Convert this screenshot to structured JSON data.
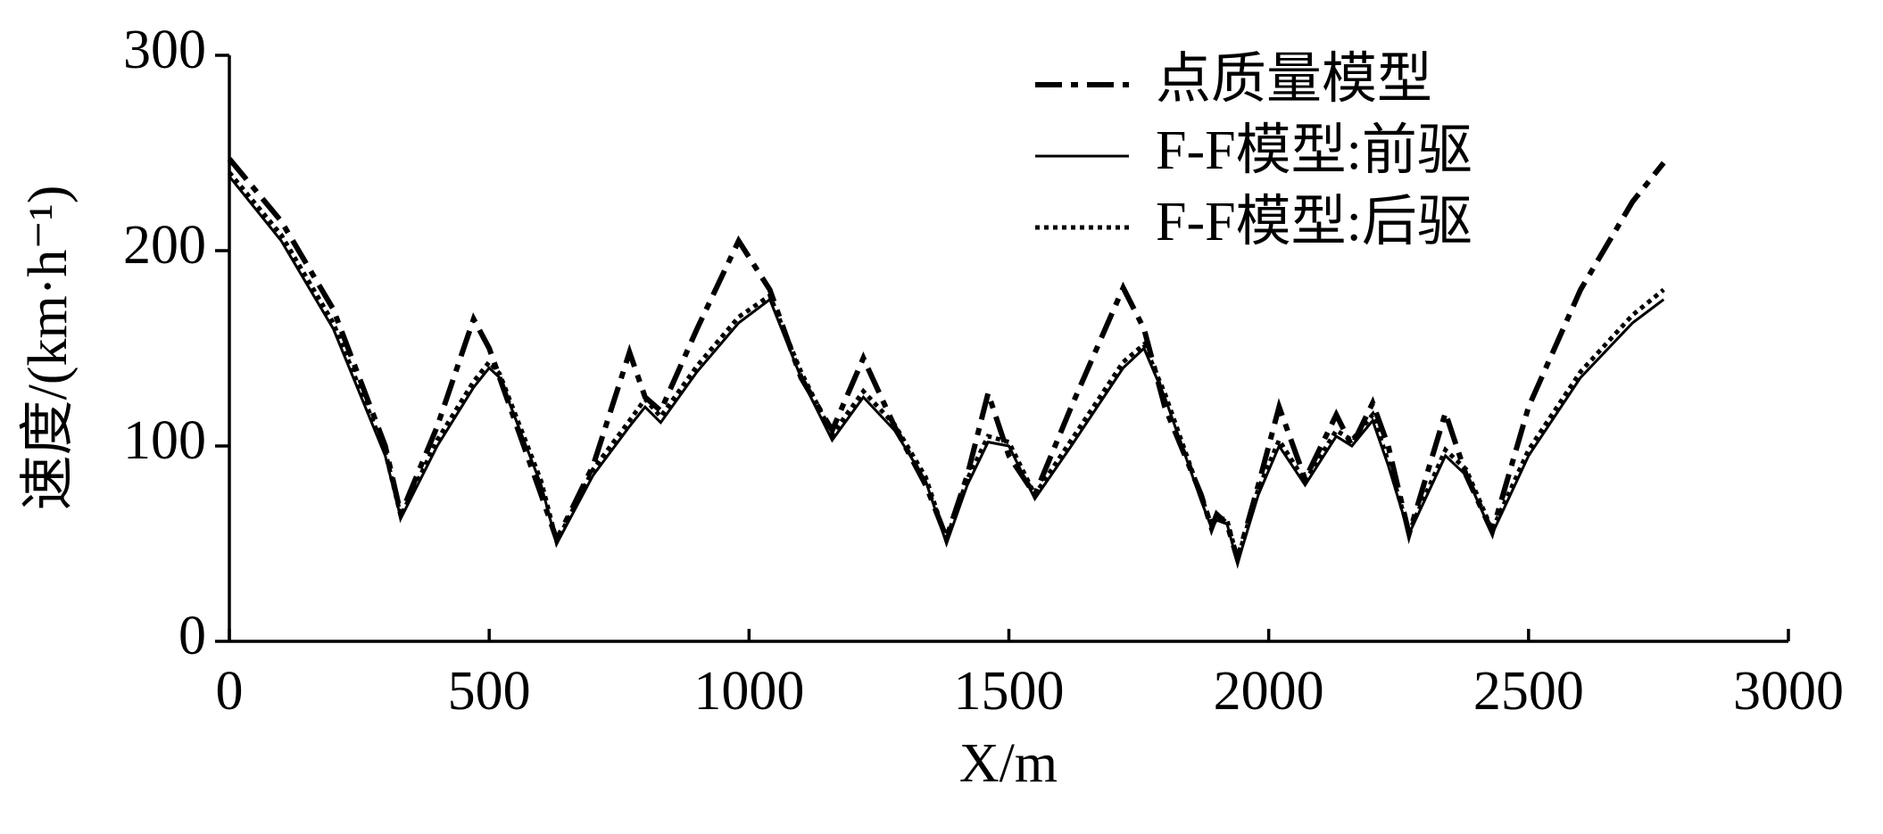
{
  "chart_data": {
    "type": "line",
    "xlabel": "X/m",
    "ylabel": "速度/(km·h⁻¹)",
    "xlim": [
      0,
      3000
    ],
    "xticks": [
      0,
      500,
      1000,
      1500,
      2000,
      2500,
      3000
    ],
    "ylim": [
      0,
      300
    ],
    "yticks": [
      0,
      100,
      200,
      300
    ],
    "grid": false,
    "legend": "upper right",
    "x": [
      0,
      100,
      200,
      300,
      330,
      400,
      470,
      500,
      520,
      600,
      630,
      700,
      770,
      800,
      830,
      900,
      980,
      1040,
      1100,
      1160,
      1220,
      1280,
      1340,
      1380,
      1420,
      1460,
      1500,
      1550,
      1620,
      1720,
      1760,
      1800,
      1870,
      1890,
      1900,
      1920,
      1940,
      1980,
      2020,
      2070,
      2130,
      2160,
      2200,
      2230,
      2270,
      2340,
      2380,
      2430,
      2500,
      2600,
      2700,
      2760
    ],
    "series": [
      {
        "name": "点质量模型",
        "color": "#000000",
        "style": "dashdot",
        "values": [
          247,
          215,
          170,
          100,
          65,
          110,
          165,
          150,
          135,
          75,
          52,
          90,
          148,
          125,
          118,
          160,
          205,
          180,
          135,
          108,
          145,
          110,
          80,
          53,
          85,
          127,
          95,
          75,
          120,
          181,
          160,
          120,
          75,
          58,
          65,
          60,
          42,
          80,
          120,
          83,
          116,
          100,
          122,
          100,
          55,
          117,
          85,
          56,
          120,
          180,
          225,
          245
        ]
      },
      {
        "name": "F-F模型:前驱",
        "color": "#000000",
        "style": "solid",
        "values": [
          238,
          205,
          160,
          95,
          63,
          100,
          130,
          140,
          135,
          80,
          50,
          85,
          110,
          120,
          112,
          138,
          163,
          175,
          135,
          103,
          125,
          108,
          82,
          50,
          80,
          102,
          100,
          73,
          100,
          140,
          150,
          125,
          72,
          58,
          62,
          60,
          40,
          75,
          100,
          80,
          105,
          100,
          113,
          90,
          55,
          95,
          85,
          55,
          95,
          135,
          163,
          175
        ]
      },
      {
        "name": "F-F模型:后驱",
        "color": "#000000",
        "style": "dotted",
        "values": [
          240,
          208,
          163,
          97,
          64,
          103,
          133,
          143,
          137,
          82,
          51,
          88,
          113,
          124,
          115,
          141,
          166,
          177,
          138,
          106,
          128,
          111,
          84,
          52,
          83,
          105,
          102,
          75,
          103,
          143,
          152,
          127,
          74,
          60,
          64,
          62,
          42,
          78,
          103,
          82,
          108,
          103,
          116,
          92,
          56,
          98,
          88,
          57,
          98,
          138,
          167,
          180
        ]
      }
    ]
  }
}
